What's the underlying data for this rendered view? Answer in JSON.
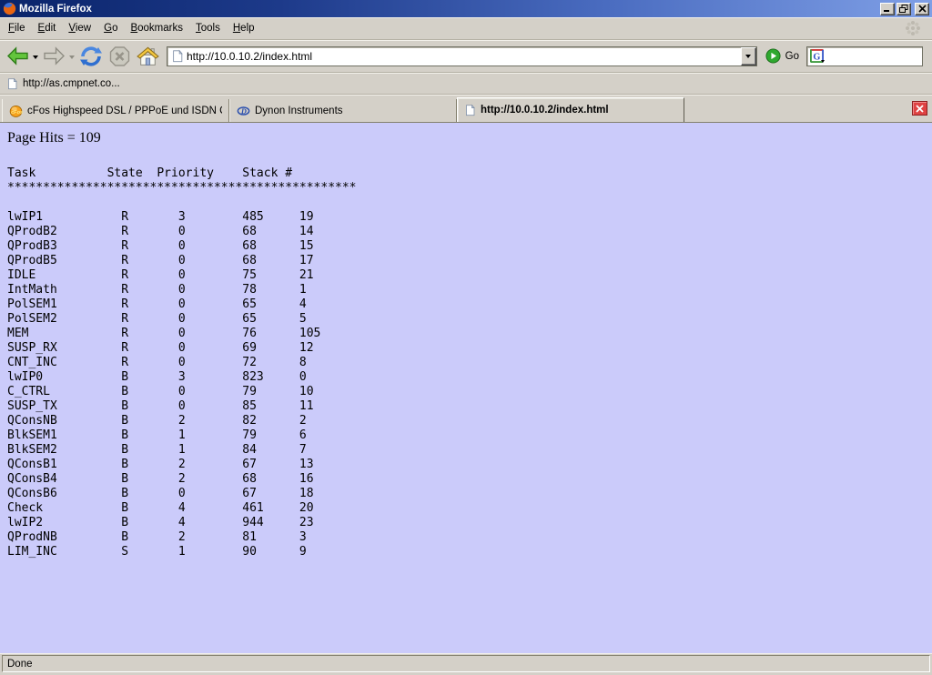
{
  "window": {
    "title": "Mozilla Firefox",
    "controls": {
      "minimize": "minimize",
      "restore": "restore",
      "close": "close"
    }
  },
  "menu": {
    "items": [
      "File",
      "Edit",
      "View",
      "Go",
      "Bookmarks",
      "Tools",
      "Help"
    ]
  },
  "toolbar": {
    "url": "http://10.0.10.2/index.html",
    "go_label": "Go",
    "search_value": ""
  },
  "bookmarks_bar": {
    "items": [
      {
        "label": "http://as.cmpnet.co...",
        "icon": "page-icon"
      }
    ]
  },
  "tabs": [
    {
      "label": "cFos Highspeed DSL / PPPoE und ISDN CAP...",
      "icon": "cfos-icon",
      "active": false
    },
    {
      "label": "Dynon Instruments",
      "icon": "dynon-icon",
      "active": false
    },
    {
      "label": "http://10.0.10.2/index.html",
      "icon": "page-icon",
      "active": true
    }
  ],
  "page": {
    "hits": "Page Hits = 109",
    "table": {
      "headers": [
        "Task",
        "State",
        "Priority",
        "Stack",
        "#"
      ],
      "separator": "*************************************************",
      "rows": [
        [
          "lwIP1",
          "R",
          "3",
          "485",
          "19"
        ],
        [
          "QProdB2",
          "R",
          "0",
          "68",
          "14"
        ],
        [
          "QProdB3",
          "R",
          "0",
          "68",
          "15"
        ],
        [
          "QProdB5",
          "R",
          "0",
          "68",
          "17"
        ],
        [
          "IDLE",
          "R",
          "0",
          "75",
          "21"
        ],
        [
          "IntMath",
          "R",
          "0",
          "78",
          "1"
        ],
        [
          "PolSEM1",
          "R",
          "0",
          "65",
          "4"
        ],
        [
          "PolSEM2",
          "R",
          "0",
          "65",
          "5"
        ],
        [
          "MEM",
          "R",
          "0",
          "76",
          "105"
        ],
        [
          "SUSP_RX",
          "R",
          "0",
          "69",
          "12"
        ],
        [
          "CNT_INC",
          "R",
          "0",
          "72",
          "8"
        ],
        [
          "lwIP0",
          "B",
          "3",
          "823",
          "0"
        ],
        [
          "C_CTRL",
          "B",
          "0",
          "79",
          "10"
        ],
        [
          "SUSP_TX",
          "B",
          "0",
          "85",
          "11"
        ],
        [
          "QConsNB",
          "B",
          "2",
          "82",
          "2"
        ],
        [
          "BlkSEM1",
          "B",
          "1",
          "79",
          "6"
        ],
        [
          "BlkSEM2",
          "B",
          "1",
          "84",
          "7"
        ],
        [
          "QConsB1",
          "B",
          "2",
          "67",
          "13"
        ],
        [
          "QConsB4",
          "B",
          "2",
          "68",
          "16"
        ],
        [
          "QConsB6",
          "B",
          "0",
          "67",
          "18"
        ],
        [
          "Check",
          "B",
          "4",
          "461",
          "20"
        ],
        [
          "lwIP2",
          "B",
          "4",
          "944",
          "23"
        ],
        [
          "QProdNB",
          "B",
          "2",
          "81",
          "3"
        ],
        [
          "LIM_INC",
          "S",
          "1",
          "90",
          "9"
        ]
      ]
    }
  },
  "status_bar": {
    "text": "Done"
  },
  "colors": {
    "page_background": "#cbcbfa",
    "titlebar_blue": "#0a246a",
    "tab_close_red": "#df4343",
    "go_green": "#2fa82f",
    "back_green": "#63c53c"
  }
}
